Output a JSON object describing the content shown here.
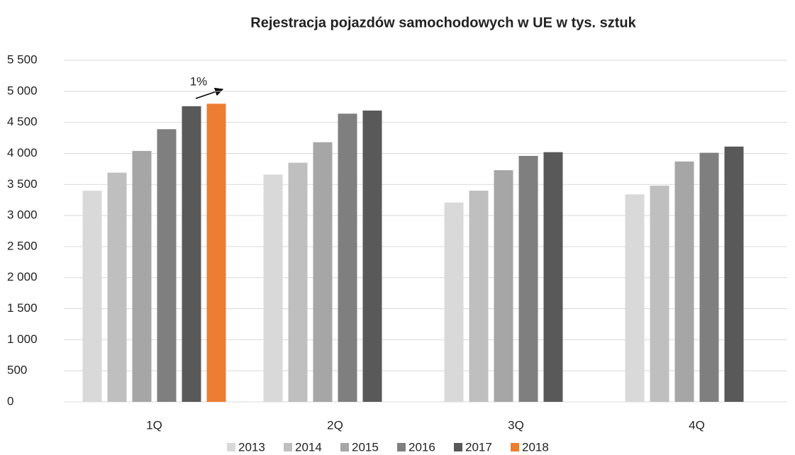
{
  "chart_data": {
    "type": "bar",
    "title": "Rejestracja pojazdów samochodowych w UE w tys. sztuk",
    "categories": [
      "1Q",
      "2Q",
      "3Q",
      "4Q"
    ],
    "series": [
      {
        "name": "2013",
        "color": "#d9d9d9",
        "values": [
          3400,
          3660,
          3210,
          3340
        ]
      },
      {
        "name": "2014",
        "color": "#bfbfbf",
        "values": [
          3690,
          3850,
          3400,
          3480
        ]
      },
      {
        "name": "2015",
        "color": "#a6a6a6",
        "values": [
          4040,
          4180,
          3730,
          3870
        ]
      },
      {
        "name": "2016",
        "color": "#7f7f7f",
        "values": [
          4390,
          4640,
          3960,
          4010
        ]
      },
      {
        "name": "2017",
        "color": "#595959",
        "values": [
          4760,
          4690,
          4020,
          4110
        ]
      },
      {
        "name": "2018",
        "color": "#ed7d31",
        "values": [
          4800,
          null,
          null,
          null
        ]
      }
    ],
    "annotation": "1%",
    "ylim": [
      0,
      5500
    ],
    "yticks": [
      0,
      500,
      {
        "value": 1000,
        "label": "1 000"
      },
      {
        "value": 1500,
        "label": "1 500"
      },
      {
        "value": 2000,
        "label": "2 000"
      },
      {
        "value": 2500,
        "label": "2 500"
      },
      {
        "value": 3000,
        "label": "3 000"
      },
      {
        "value": 3500,
        "label": "3 500"
      },
      {
        "value": 4000,
        "label": "4 000"
      },
      {
        "value": 4500,
        "label": "4 500"
      },
      {
        "value": 5000,
        "label": "5 000"
      },
      {
        "value": 5500,
        "label": "5 500"
      }
    ],
    "grid": true,
    "legend": "bottom"
  }
}
